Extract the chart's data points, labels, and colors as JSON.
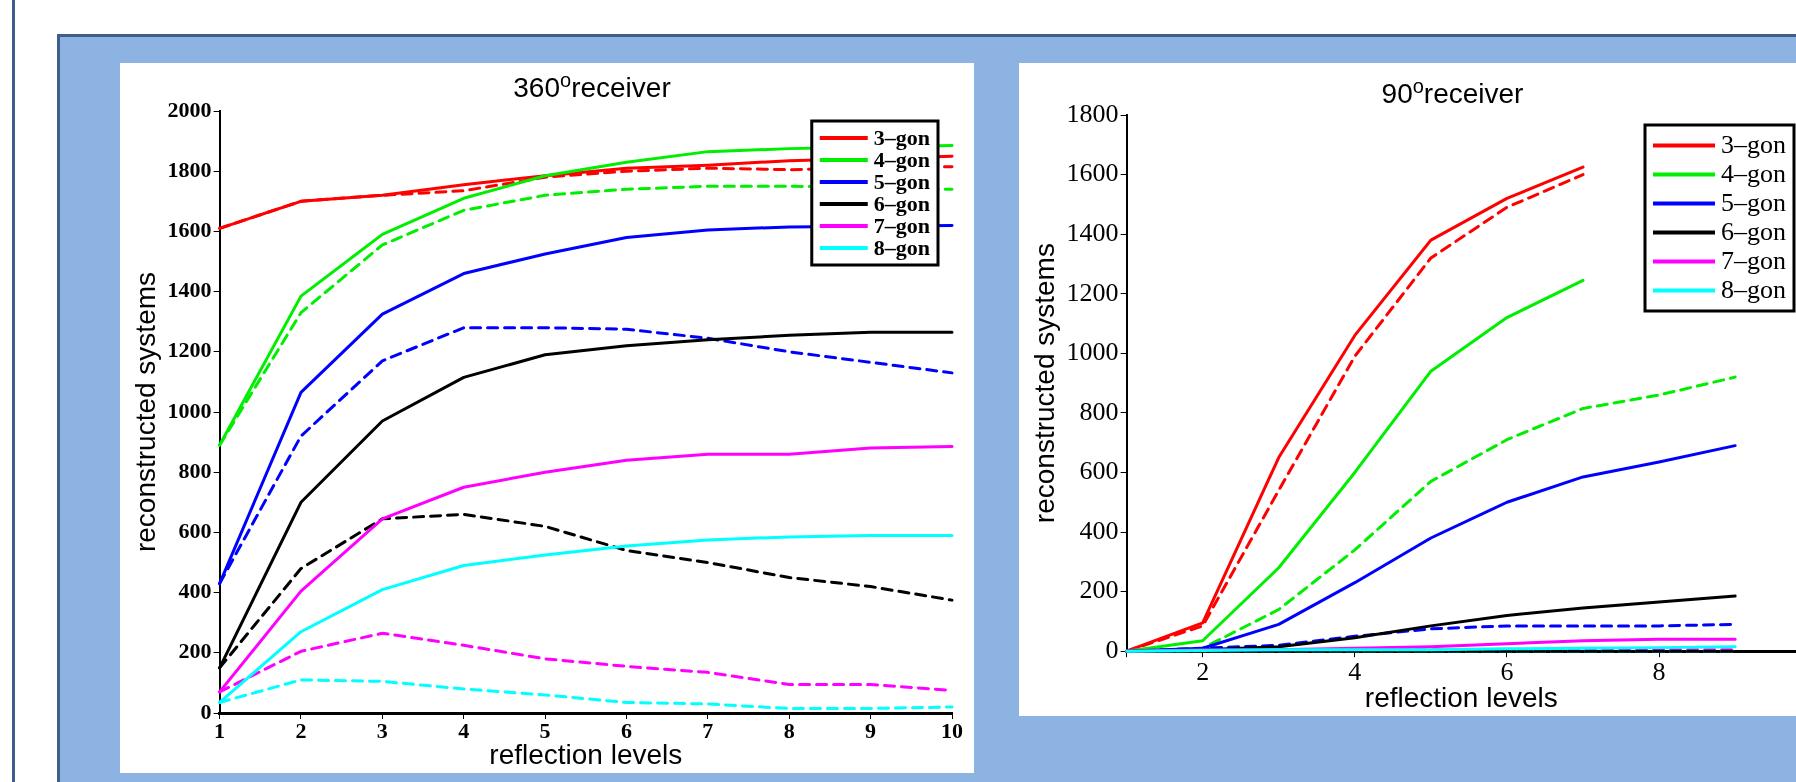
{
  "chart_data": [
    {
      "type": "line",
      "title": "360$^{o}$receiver",
      "xlabel": "reflection levels",
      "ylabel": "reconstructed systems",
      "x": [
        1,
        2,
        3,
        4,
        5,
        6,
        7,
        8,
        9,
        10
      ],
      "xlim": [
        1,
        10
      ],
      "xticks": [
        1,
        2,
        3,
        4,
        5,
        6,
        7,
        8,
        9,
        10
      ],
      "ylim": [
        0,
        2000
      ],
      "yticks": [
        0,
        200,
        400,
        600,
        800,
        1000,
        1200,
        1400,
        1600,
        1800,
        2000
      ],
      "grid": false,
      "legend": "top right",
      "marker": "none",
      "series": [
        {
          "name": "3–gon",
          "color": "#ff0000",
          "line_style": "solid",
          "values": [
            1610,
            1700,
            1720,
            1755,
            1785,
            1810,
            1820,
            1835,
            null,
            1850
          ]
        },
        {
          "name": "4–gon",
          "color": "#00ee00",
          "line_style": "solid",
          "values": [
            890,
            1385,
            1590,
            1710,
            1785,
            1830,
            1865,
            1875,
            null,
            1885
          ]
        },
        {
          "name": "5–gon",
          "color": "#0000ff",
          "line_style": "solid",
          "values": [
            430,
            1065,
            1325,
            1460,
            1525,
            1580,
            1605,
            1615,
            null,
            1620
          ]
        },
        {
          "name": "6–gon",
          "color": "#000000",
          "line_style": "solid",
          "values": [
            150,
            700,
            970,
            1115,
            1190,
            1220,
            1240,
            1255,
            1265,
            1265
          ]
        },
        {
          "name": "7–gon",
          "color": "#ff00ff",
          "line_style": "solid",
          "values": [
            70,
            405,
            645,
            750,
            800,
            840,
            860,
            860,
            880,
            885
          ]
        },
        {
          "name": "8–gon",
          "color": "#00ffff",
          "line_style": "solid",
          "values": [
            35,
            270,
            410,
            490,
            525,
            555,
            575,
            585,
            590,
            590
          ]
        },
        {
          "color": "#ff0000",
          "line_style": "dashed",
          "values": [
            1610,
            1700,
            1720,
            1735,
            1780,
            1800,
            1810,
            1805,
            null,
            1815
          ]
        },
        {
          "color": "#00ee00",
          "line_style": "dashed",
          "values": [
            890,
            1330,
            1555,
            1670,
            1720,
            1740,
            1750,
            1750,
            null,
            1740
          ]
        },
        {
          "color": "#0000ff",
          "line_style": "dashed",
          "values": [
            430,
            920,
            1170,
            1280,
            1280,
            1275,
            1245,
            1200,
            1165,
            1130
          ]
        },
        {
          "color": "#000000",
          "line_style": "dashed",
          "values": [
            150,
            480,
            645,
            660,
            620,
            540,
            500,
            450,
            420,
            375
          ]
        },
        {
          "color": "#ff00ff",
          "line_style": "dashed",
          "values": [
            70,
            205,
            265,
            225,
            180,
            155,
            135,
            95,
            95,
            75
          ]
        },
        {
          "color": "#00ffff",
          "line_style": "dashed",
          "values": [
            35,
            110,
            105,
            80,
            60,
            35,
            30,
            15,
            15,
            20
          ]
        }
      ]
    },
    {
      "type": "line",
      "title": "90$^{o}$receiver",
      "xlabel": "reflection levels",
      "ylabel": "reconstructed systems",
      "x": [
        1,
        2,
        3,
        4,
        5,
        6,
        7,
        8,
        9
      ],
      "xlim": [
        1,
        9.8
      ],
      "xticks": [
        {
          "value": 1,
          "label": null
        },
        2,
        4,
        6,
        8
      ],
      "ylim": [
        0,
        1800
      ],
      "yticks": [
        0,
        200,
        400,
        600,
        800,
        1000,
        1200,
        1400,
        1600,
        1800
      ],
      "grid": false,
      "legend": "top right",
      "marker": "none",
      "series": [
        {
          "name": "3–gon",
          "color": "#ff0000",
          "line_style": "solid",
          "values": [
            0,
            95,
            650,
            1060,
            1380,
            1520,
            1625,
            null,
            null
          ]
        },
        {
          "name": "4–gon",
          "color": "#00ee00",
          "line_style": "solid",
          "values": [
            0,
            35,
            280,
            600,
            940,
            1120,
            1245,
            null,
            null
          ]
        },
        {
          "name": "5–gon",
          "color": "#0000ff",
          "line_style": "solid",
          "values": [
            0,
            10,
            90,
            230,
            380,
            500,
            585,
            635,
            690
          ]
        },
        {
          "name": "6–gon",
          "color": "#000000",
          "line_style": "solid",
          "values": [
            0,
            5,
            15,
            45,
            85,
            120,
            145,
            165,
            185
          ]
        },
        {
          "name": "7–gon",
          "color": "#ff00ff",
          "line_style": "solid",
          "values": [
            0,
            5,
            5,
            10,
            15,
            25,
            35,
            40,
            40
          ]
        },
        {
          "name": "8–gon",
          "color": "#00ffff",
          "line_style": "solid",
          "values": [
            0,
            2,
            5,
            5,
            5,
            8,
            10,
            12,
            15
          ]
        },
        {
          "color": "#ff0000",
          "line_style": "dashed",
          "values": [
            0,
            85,
            540,
            990,
            1320,
            1490,
            1600,
            null,
            null
          ]
        },
        {
          "color": "#00ee00",
          "line_style": "dashed",
          "values": [
            0,
            10,
            140,
            340,
            570,
            710,
            815,
            860,
            920
          ]
        },
        {
          "color": "#0000ff",
          "line_style": "dashed",
          "values": [
            0,
            10,
            20,
            50,
            75,
            85,
            85,
            85,
            90
          ]
        },
        {
          "color": "#000000",
          "line_style": "dashed",
          "values": [
            0,
            0,
            0,
            0,
            0,
            0,
            0,
            0,
            0
          ]
        },
        {
          "color": "#ff00ff",
          "line_style": "dashed",
          "values": [
            0,
            2,
            3,
            5,
            5,
            5,
            5,
            5,
            5
          ]
        },
        {
          "color": "#00ffff",
          "line_style": "dashed",
          "values": [
            0,
            0,
            0,
            0,
            0,
            0,
            0,
            0,
            0
          ]
        }
      ]
    }
  ]
}
